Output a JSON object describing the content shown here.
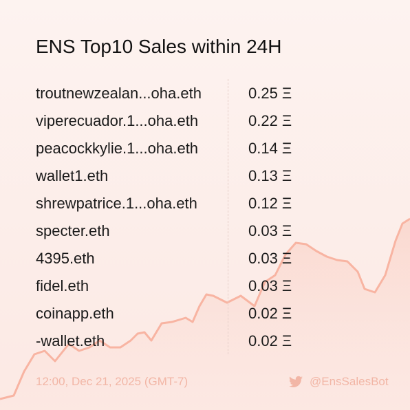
{
  "title": "ENS Top10 Sales within 24H",
  "table": {
    "rows": [
      [
        "troutnewzealan...oha.eth",
        "0.25 Ξ"
      ],
      [
        "viperecuador.1...oha.eth",
        "0.22 Ξ"
      ],
      [
        "peacockkylie.1...oha.eth",
        "0.14 Ξ"
      ],
      [
        "wallet1.eth",
        "0.13 Ξ"
      ],
      [
        "shrewpatrice.1...oha.eth",
        "0.12 Ξ"
      ],
      [
        "specter.eth",
        "0.03 Ξ"
      ],
      [
        "4395.eth",
        "0.03 Ξ"
      ],
      [
        "fidel.eth",
        "0.03 Ξ"
      ],
      [
        "coinapp.eth",
        "0.02 Ξ"
      ],
      [
        "-wallet.eth",
        "0.02 Ξ"
      ]
    ]
  },
  "footer": {
    "timestamp": "12:00, Dec 21, 2025 (GMT-7)",
    "handle": "@EnsSalesBot"
  }
}
